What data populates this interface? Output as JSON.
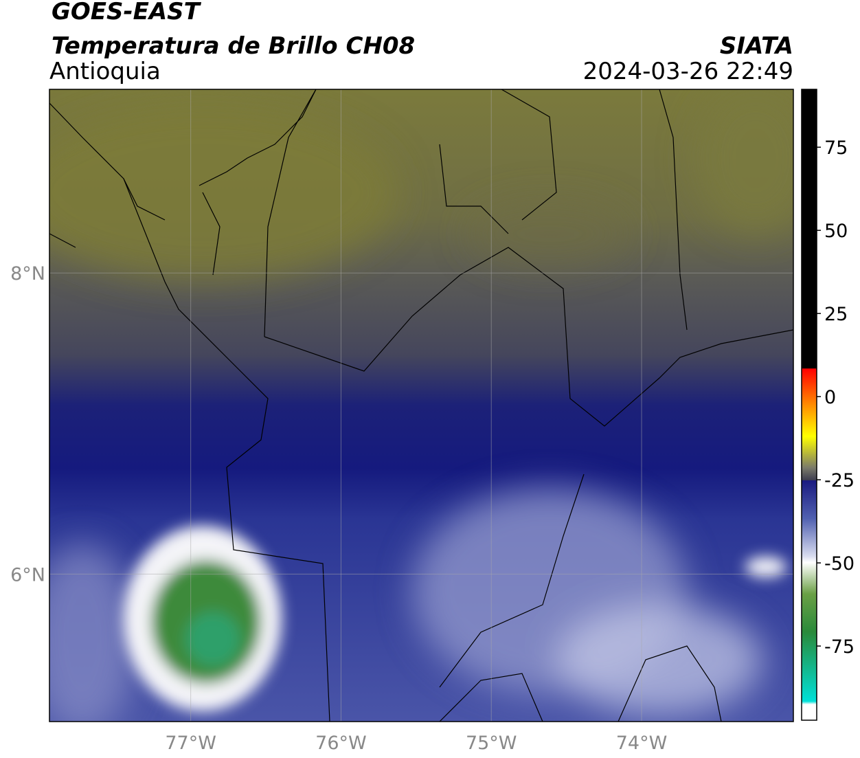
{
  "header": {
    "source": "GOES-EAST",
    "product": "Temperatura de Brillo CH08",
    "region": "Antioquia",
    "agency": "SIATA",
    "datetime": "2024-03-26 22:49"
  },
  "map": {
    "lonlim": [
      -77.94,
      -72.99
    ],
    "latlim": [
      5.02,
      9.22
    ],
    "lon_ticks": [
      {
        "value": -77,
        "label": "77°W"
      },
      {
        "value": -76,
        "label": "76°W"
      },
      {
        "value": -75,
        "label": "75°W"
      },
      {
        "value": -74,
        "label": "74°W"
      }
    ],
    "lat_ticks": [
      {
        "value": 8,
        "label": "8°N"
      },
      {
        "value": 6,
        "label": "6°N"
      }
    ]
  },
  "colorbar": {
    "lim": [
      -97.3,
      92.4
    ],
    "ticks": [
      75,
      50,
      25,
      0,
      -25,
      -50,
      -75
    ]
  }
}
